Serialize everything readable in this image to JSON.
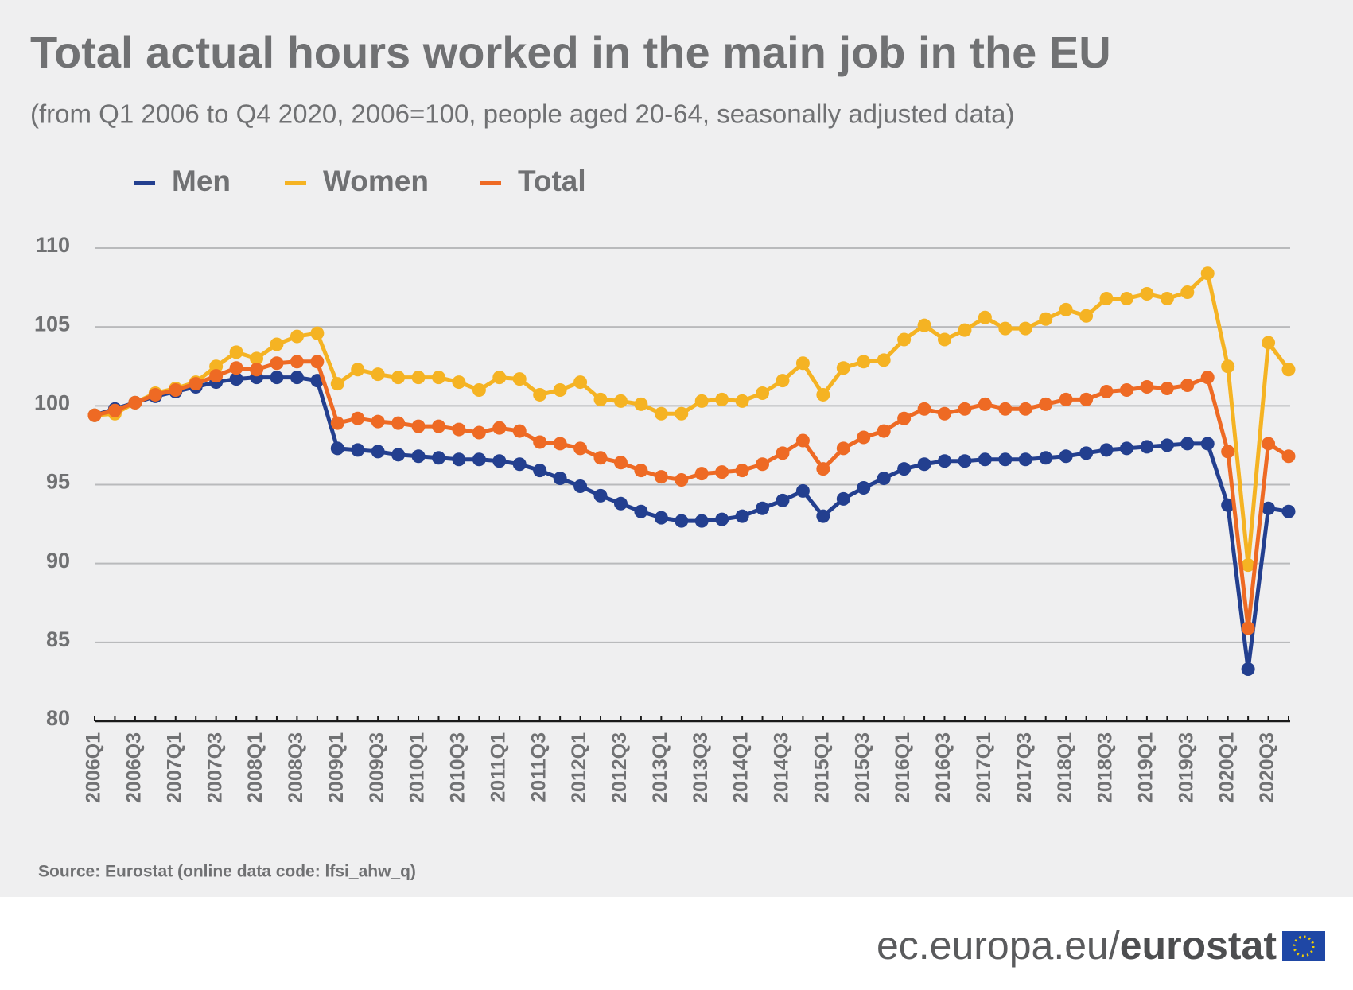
{
  "chart_data": {
    "type": "line",
    "title": "Total actual hours worked in the main job in the EU",
    "subtitle": "(from Q1 2006 to Q4 2020, 2006=100, people aged 20-64, seasonally adjusted data)",
    "source": "Source: Eurostat (online data code: lfsi_ahw_q)",
    "footer": {
      "site": "ec.europa.eu/",
      "brand": "eurostat"
    },
    "legend": "top-left",
    "grid": true,
    "ylim": [
      80,
      110
    ],
    "yticks": [
      80,
      85,
      90,
      95,
      100,
      105,
      110
    ],
    "categories": [
      "2006Q1",
      null,
      "2006Q3",
      null,
      "2007Q1",
      null,
      "2007Q3",
      null,
      "2008Q1",
      null,
      "2008Q3",
      null,
      "2009Q1",
      null,
      "2009Q3",
      null,
      "2010Q1",
      null,
      "2010Q3",
      null,
      "2011Q1",
      null,
      "2011Q3",
      null,
      "2012Q1",
      null,
      "2012Q3",
      null,
      "2013Q1",
      null,
      "2013Q3",
      null,
      "2014Q1",
      null,
      "2014Q3",
      null,
      "2015Q1",
      null,
      "2015Q3",
      null,
      "2016Q1",
      null,
      "2016Q3",
      null,
      "2017Q1",
      null,
      "2017Q3",
      null,
      "2018Q1",
      null,
      "2018Q3",
      null,
      "2019Q1",
      null,
      "2019Q3",
      null,
      "2020Q1",
      null,
      "2020Q3",
      null
    ],
    "series": [
      {
        "name": "Men",
        "color": "#233f8f",
        "values": [
          99.4,
          99.8,
          100.2,
          100.6,
          100.9,
          101.2,
          101.5,
          101.7,
          101.8,
          101.8,
          101.8,
          101.6,
          97.3,
          97.2,
          97.1,
          96.9,
          96.8,
          96.7,
          96.6,
          96.6,
          96.5,
          96.3,
          95.9,
          95.4,
          94.9,
          94.3,
          93.8,
          93.3,
          92.9,
          92.7,
          92.7,
          92.8,
          93.0,
          93.5,
          94.0,
          94.6,
          93.0,
          94.1,
          94.8,
          95.4,
          96.0,
          96.3,
          96.5,
          96.5,
          96.6,
          96.6,
          96.6,
          96.7,
          96.8,
          97.0,
          97.2,
          97.3,
          97.4,
          97.5,
          97.6,
          97.6,
          93.7,
          83.3,
          93.5,
          93.3
        ]
      },
      {
        "name": "Women",
        "color": "#f5b323",
        "values": [
          99.4,
          99.5,
          100.2,
          100.8,
          101.1,
          101.5,
          102.5,
          103.4,
          103.0,
          103.9,
          104.4,
          104.6,
          101.4,
          102.3,
          102.0,
          101.8,
          101.8,
          101.8,
          101.5,
          101.0,
          101.8,
          101.7,
          100.7,
          101.0,
          101.5,
          100.4,
          100.3,
          100.1,
          99.5,
          99.5,
          100.3,
          100.4,
          100.3,
          100.8,
          101.6,
          102.7,
          100.7,
          102.4,
          102.8,
          102.9,
          104.2,
          105.1,
          104.2,
          104.8,
          105.6,
          104.9,
          104.9,
          105.5,
          106.1,
          105.7,
          106.8,
          106.8,
          107.1,
          106.8,
          107.2,
          108.4,
          102.5,
          89.9,
          104.0,
          102.3
        ]
      },
      {
        "name": "Total",
        "color": "#ee6a24",
        "values": [
          99.4,
          99.7,
          100.2,
          100.7,
          101.0,
          101.4,
          101.9,
          102.4,
          102.3,
          102.7,
          102.8,
          102.8,
          98.9,
          99.2,
          99.0,
          98.9,
          98.7,
          98.7,
          98.5,
          98.3,
          98.6,
          98.4,
          97.7,
          97.6,
          97.3,
          96.7,
          96.4,
          95.9,
          95.5,
          95.3,
          95.7,
          95.8,
          95.9,
          96.3,
          97.0,
          97.8,
          96.0,
          97.3,
          98.0,
          98.4,
          99.2,
          99.8,
          99.5,
          99.8,
          100.1,
          99.8,
          99.8,
          100.1,
          100.4,
          100.4,
          100.9,
          101.0,
          101.2,
          101.1,
          101.3,
          101.8,
          97.1,
          85.9,
          97.6,
          96.8
        ]
      }
    ]
  }
}
